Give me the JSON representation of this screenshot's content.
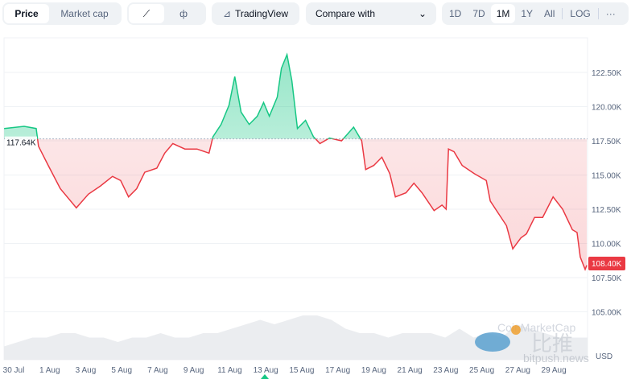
{
  "toolbar": {
    "price": "Price",
    "market_cap": "Market cap",
    "tradingview": "TradingView",
    "compare": "Compare with",
    "ranges": [
      "1D",
      "7D",
      "1M",
      "1Y",
      "All"
    ],
    "log": "LOG",
    "more": "···"
  },
  "colors": {
    "up": "#16c784",
    "down": "#ea3943",
    "grid": "#eff2f5",
    "volume": "#e6e8ec"
  },
  "watermark": {
    "brand": "CoinMarketCap",
    "site": "bitpush.news",
    "cn": "比推"
  },
  "chart_data": {
    "type": "area",
    "baseline": 117.64,
    "baseline_label": "117.64K",
    "current_label": "108.40K",
    "currency": "USD",
    "ylim": [
      103.5,
      125
    ],
    "yticks": [
      {
        "v": 122.5,
        "l": "122.50K"
      },
      {
        "v": 120,
        "l": "120.00K"
      },
      {
        "v": 117.5,
        "l": "117.50K"
      },
      {
        "v": 115,
        "l": "115.00K"
      },
      {
        "v": 112.5,
        "l": "112.50K"
      },
      {
        "v": 110,
        "l": "110.00K"
      },
      {
        "v": 107.5,
        "l": "107.50K"
      },
      {
        "v": 105,
        "l": "105.00K"
      }
    ],
    "xticks": [
      {
        "d": 0,
        "l": "30 Jul"
      },
      {
        "d": 2,
        "l": "1 Aug"
      },
      {
        "d": 4,
        "l": "3 Aug"
      },
      {
        "d": 6,
        "l": "5 Aug"
      },
      {
        "d": 8,
        "l": "7 Aug"
      },
      {
        "d": 10,
        "l": "9 Aug"
      },
      {
        "d": 12,
        "l": "11 Aug"
      },
      {
        "d": 14,
        "l": "13 Aug"
      },
      {
        "d": 16,
        "l": "15 Aug"
      },
      {
        "d": 18,
        "l": "17 Aug"
      },
      {
        "d": 20,
        "l": "19 Aug"
      },
      {
        "d": 22,
        "l": "21 Aug"
      },
      {
        "d": 24,
        "l": "23 Aug"
      },
      {
        "d": 26,
        "l": "25 Aug"
      },
      {
        "d": 28,
        "l": "27 Aug"
      },
      {
        "d": 30,
        "l": "29 Aug"
      }
    ],
    "xlim": [
      -0.55,
      31.8
    ],
    "series": [
      [
        -0.53,
        118.4
      ],
      [
        0.58,
        118.56
      ],
      [
        1.25,
        118.4
      ],
      [
        1.38,
        117.1
      ],
      [
        1.92,
        115.7
      ],
      [
        2.59,
        114.0
      ],
      [
        3.48,
        112.6
      ],
      [
        4.15,
        113.6
      ],
      [
        4.82,
        114.2
      ],
      [
        5.49,
        114.9
      ],
      [
        5.94,
        114.6
      ],
      [
        6.38,
        113.4
      ],
      [
        6.83,
        114.0
      ],
      [
        7.28,
        115.2
      ],
      [
        7.95,
        115.5
      ],
      [
        8.39,
        116.6
      ],
      [
        8.84,
        117.3
      ],
      [
        9.51,
        116.9
      ],
      [
        10.18,
        116.9
      ],
      [
        10.85,
        116.6
      ],
      [
        11.07,
        117.8
      ],
      [
        11.52,
        118.7
      ],
      [
        11.96,
        120.1
      ],
      [
        12.28,
        122.2
      ],
      [
        12.63,
        119.6
      ],
      [
        13.08,
        118.7
      ],
      [
        13.53,
        119.3
      ],
      [
        13.88,
        120.3
      ],
      [
        14.2,
        119.3
      ],
      [
        14.64,
        120.7
      ],
      [
        14.87,
        122.8
      ],
      [
        15.18,
        123.8
      ],
      [
        15.45,
        121.9
      ],
      [
        15.76,
        118.4
      ],
      [
        16.21,
        119.0
      ],
      [
        16.65,
        117.8
      ],
      [
        17.01,
        117.3
      ],
      [
        17.54,
        117.7
      ],
      [
        18.21,
        117.5
      ],
      [
        18.88,
        118.5
      ],
      [
        19.33,
        117.5
      ],
      [
        19.55,
        115.4
      ],
      [
        20.0,
        115.7
      ],
      [
        20.45,
        116.3
      ],
      [
        20.89,
        115.1
      ],
      [
        21.2,
        113.4
      ],
      [
        21.79,
        113.7
      ],
      [
        22.23,
        114.4
      ],
      [
        22.68,
        113.7
      ],
      [
        23.35,
        112.4
      ],
      [
        23.79,
        112.8
      ],
      [
        24.02,
        112.5
      ],
      [
        24.15,
        116.9
      ],
      [
        24.46,
        116.7
      ],
      [
        24.91,
        115.7
      ],
      [
        25.58,
        115.1
      ],
      [
        26.25,
        114.6
      ],
      [
        26.47,
        113.1
      ],
      [
        26.92,
        112.2
      ],
      [
        27.37,
        111.3
      ],
      [
        27.72,
        109.6
      ],
      [
        28.17,
        110.4
      ],
      [
        28.48,
        110.7
      ],
      [
        28.93,
        111.9
      ],
      [
        29.38,
        111.9
      ],
      [
        29.96,
        113.4
      ],
      [
        30.49,
        112.5
      ],
      [
        31.03,
        111.0
      ],
      [
        31.29,
        110.8
      ],
      [
        31.47,
        109.0
      ],
      [
        31.74,
        108.1
      ],
      [
        31.83,
        108.4
      ]
    ],
    "volume": [
      3,
      4,
      5,
      5,
      6,
      6,
      5,
      5,
      4,
      5,
      5,
      6,
      5,
      5,
      6,
      6,
      7,
      8,
      9,
      8,
      9,
      10,
      10,
      9,
      7,
      6,
      6,
      5,
      6,
      6,
      6,
      5,
      7,
      5,
      6,
      5,
      8,
      7,
      6,
      5,
      5,
      5
    ]
  }
}
